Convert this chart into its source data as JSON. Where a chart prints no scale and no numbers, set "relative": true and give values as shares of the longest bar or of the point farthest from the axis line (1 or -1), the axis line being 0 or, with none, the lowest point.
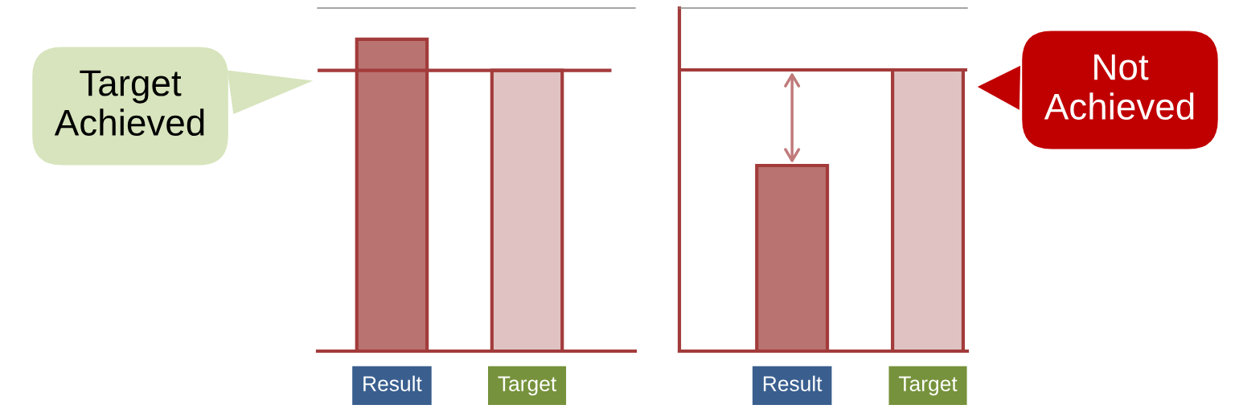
{
  "chart_data": [
    {
      "type": "bar",
      "relative": true,
      "categories": [
        "Result",
        "Target"
      ],
      "colors": [
        "#b97370",
        "#e0c2c3"
      ],
      "values": [
        1,
        0.9
      ],
      "ref_lines": [
        {
          "axis": "y",
          "value": 0.9,
          "color": "#a33b3b"
        }
      ],
      "annotations": [
        "Target Achieved"
      ]
    },
    {
      "type": "bar",
      "relative": true,
      "categories": [
        "Result",
        "Target"
      ],
      "colors": [
        "#b97370",
        "#e0c2c3"
      ],
      "values": [
        0.66,
        1
      ],
      "ref_lines": [
        {
          "axis": "y",
          "value": 1,
          "color": "#a33b3b"
        }
      ],
      "annotations": [
        "Not Achieved"
      ]
    }
  ]
}
